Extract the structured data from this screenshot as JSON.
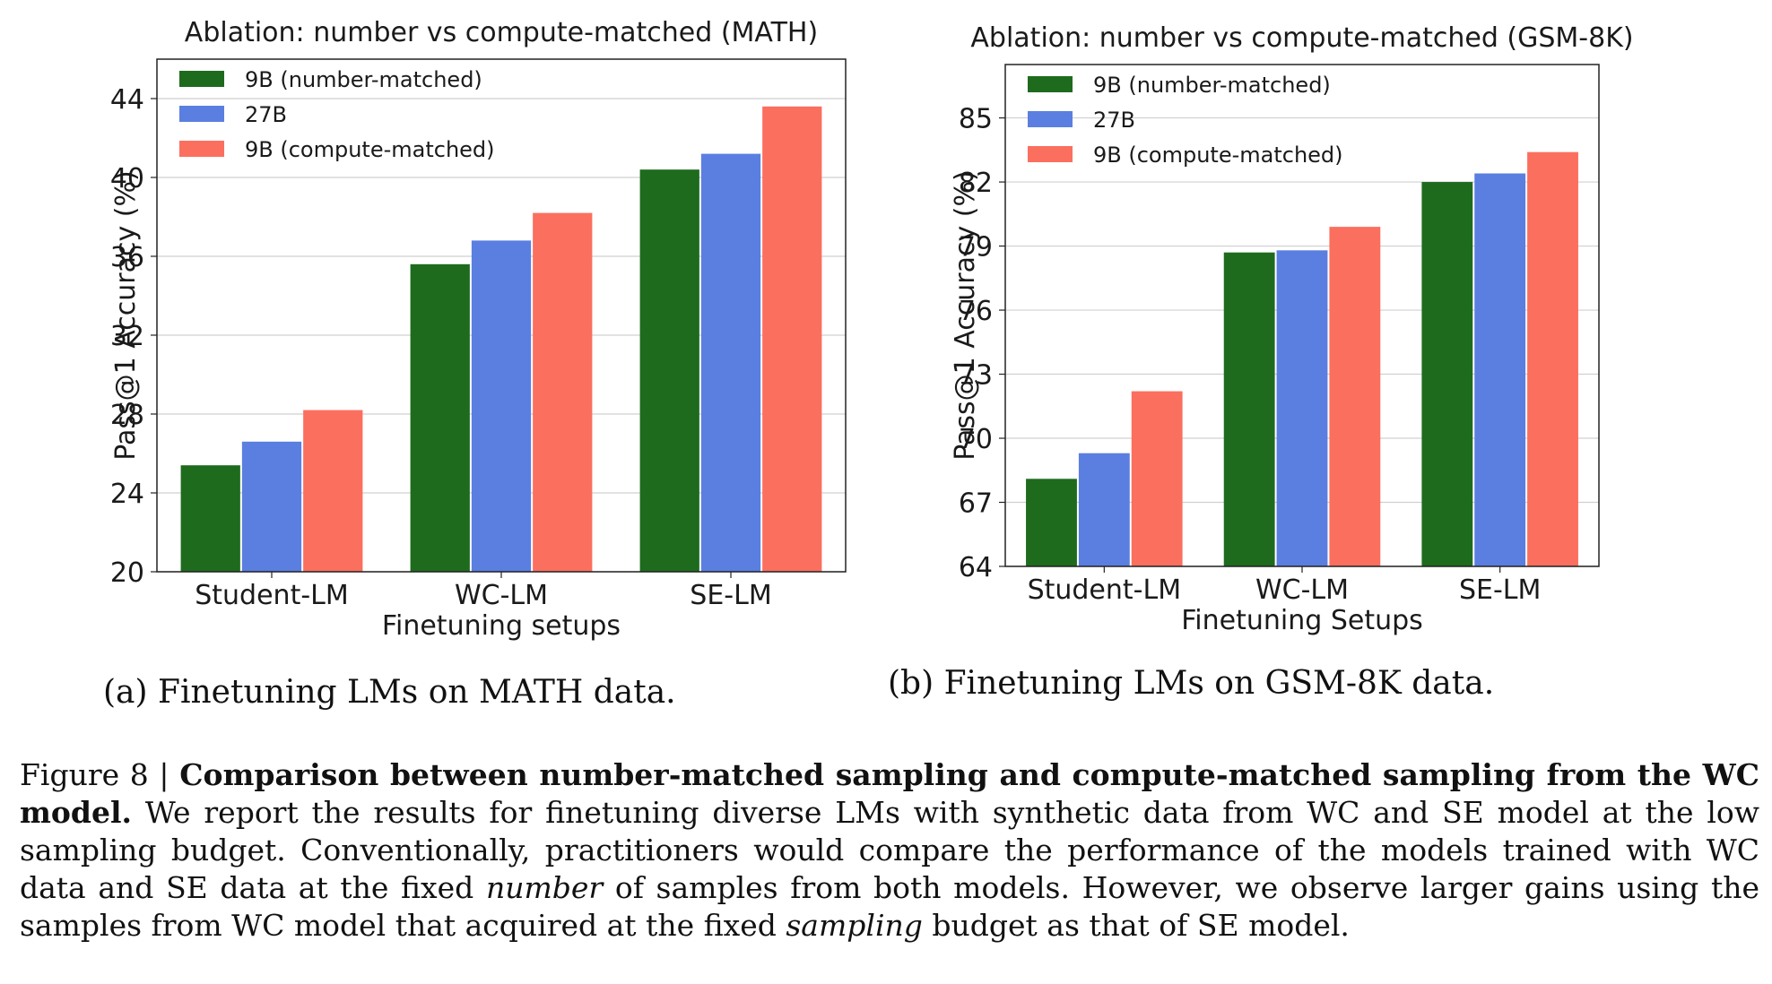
{
  "charts": [
    {
      "id": "a",
      "chart_data": {
        "type": "bar",
        "title": "Ablation: number vs compute-matched (MATH)",
        "xlabel": "Finetuning setups",
        "ylabel": "Pass@1 Accuracy (%)",
        "categories": [
          "Student-LM",
          "WC-LM",
          "SE-LM"
        ],
        "series": [
          {
            "name": "9B (number-matched)",
            "color": "#1e6b1e",
            "values": [
              25.4,
              35.6,
              40.4
            ]
          },
          {
            "name": "27B",
            "color": "#5a7fe0",
            "values": [
              26.6,
              36.8,
              41.2
            ]
          },
          {
            "name": "9B (compute-matched)",
            "color": "#fb6f5f",
            "values": [
              28.2,
              38.2,
              43.6
            ]
          }
        ],
        "ylim": [
          20,
          46
        ],
        "yticks": [
          20,
          24,
          28,
          32,
          36,
          40,
          44
        ],
        "grid": "y",
        "legend": "top-left"
      },
      "subcaption": "(a) Finetuning LMs on MATH data."
    },
    {
      "id": "b",
      "chart_data": {
        "type": "bar",
        "title": "Ablation: number vs compute-matched (GSM-8K)",
        "xlabel": "Finetuning Setups",
        "ylabel": "Pass@1 Accuracy (%)",
        "categories": [
          "Student-LM",
          "WC-LM",
          "SE-LM"
        ],
        "series": [
          {
            "name": "9B (number-matched)",
            "color": "#1e6b1e",
            "values": [
              68.1,
              78.7,
              82.0
            ]
          },
          {
            "name": "27B",
            "color": "#5a7fe0",
            "values": [
              69.3,
              78.8,
              82.4
            ]
          },
          {
            "name": "9B (compute-matched)",
            "color": "#fb6f5f",
            "values": [
              72.2,
              79.9,
              83.4
            ]
          }
        ],
        "ylim": [
          64,
          87.5
        ],
        "yticks": [
          64,
          67,
          70,
          73,
          76,
          79,
          82,
          85
        ],
        "grid": "y",
        "legend": "top-left"
      },
      "subcaption": "(b) Finetuning LMs on GSM-8K data."
    }
  ],
  "caption": {
    "label": "Figure 8 | ",
    "bold": "Comparison between number-matched sampling and compute-matched sampling from the WC model.",
    "part1": " We report the results for finetuning diverse LMs with synthetic data from WC and SE model at the low sampling budget. Conventionally, practitioners would compare the performance of the models trained with WC data and SE data at the fixed ",
    "em1": "number",
    "part2": " of samples from both models. However, we observe larger gains using the samples from WC model that acquired at the fixed ",
    "em2": "sampling",
    "part3": " budget as that of SE model."
  }
}
